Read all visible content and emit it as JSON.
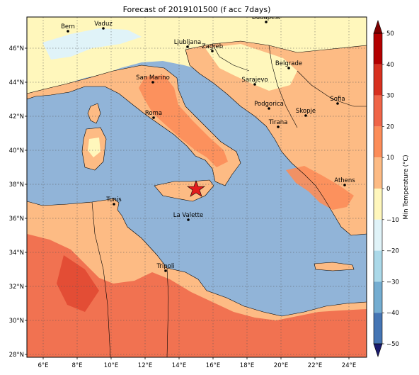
{
  "title": "Forecast of 2019101500 (f acc 7days)",
  "colorbar": {
    "label": "Min Temperature (°C)",
    "ticks": [
      "50",
      "40",
      "30",
      "20",
      "10",
      "0",
      "−10",
      "−20",
      "−30",
      "−40",
      "−50"
    ],
    "colors": [
      "#7f0000",
      "#b30000",
      "#d7301f",
      "#ef6548",
      "#fc8d59",
      "#fdbb84",
      "#fff7bc",
      "#e0f3f8",
      "#abd9e9",
      "#74add1",
      "#4575b4",
      "#313695",
      "#1a1a6e"
    ]
  },
  "axes": {
    "lat_labels": [
      "46°N",
      "44°N",
      "42°N",
      "40°N",
      "38°N",
      "36°N",
      "34°N",
      "32°N",
      "30°N",
      "28°N"
    ],
    "lon_labels": [
      "6°E",
      "8°E",
      "10°E",
      "12°E",
      "14°E",
      "16°E",
      "18°E",
      "20°E",
      "22°E",
      "24°E"
    ]
  },
  "cities": [
    {
      "name": "Bern"
    },
    {
      "name": "Vaduz"
    },
    {
      "name": "Budapest"
    },
    {
      "name": "Ljubljana"
    },
    {
      "name": "Zagreb"
    },
    {
      "name": "Belgrade"
    },
    {
      "name": "San Marino"
    },
    {
      "name": "Sarajevo"
    },
    {
      "name": "Sofia"
    },
    {
      "name": "Podgorica"
    },
    {
      "name": "Skopje"
    },
    {
      "name": "Roma"
    },
    {
      "name": "Tirana"
    },
    {
      "name": "Athens"
    },
    {
      "name": "Tunis"
    },
    {
      "name": "La Valette"
    },
    {
      "name": "Tripoli"
    }
  ],
  "marker": {
    "symbol": "star",
    "color": "#e41a1c"
  }
}
